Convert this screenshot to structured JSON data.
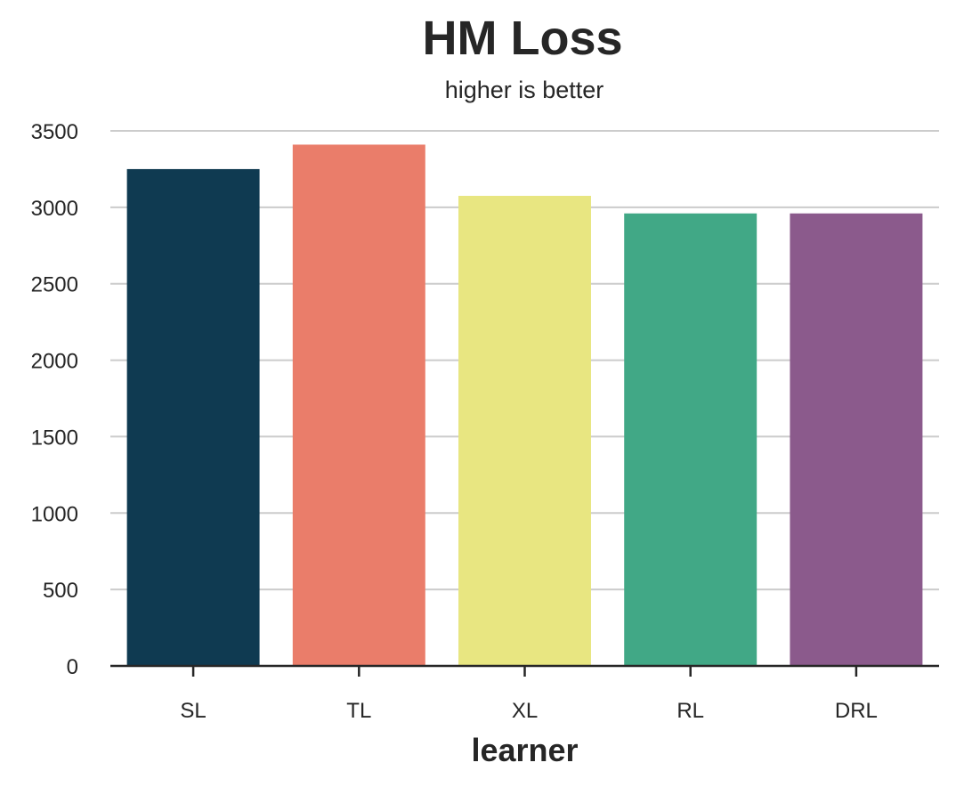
{
  "chart_data": {
    "type": "bar",
    "title": "HM Loss",
    "subtitle": "higher is better",
    "xlabel": "learner",
    "ylabel": "",
    "categories": [
      "SL",
      "TL",
      "XL",
      "RL",
      "DRL"
    ],
    "values": [
      3250,
      3410,
      3075,
      2960,
      2960
    ],
    "colors": [
      "#0f3a51",
      "#ea7d6a",
      "#e8e681",
      "#41a886",
      "#8b5a8c"
    ],
    "ylim": [
      0,
      3500
    ],
    "yticks": [
      0,
      500,
      1000,
      1500,
      2000,
      2500,
      3000,
      3500
    ],
    "grid": "horizontal",
    "legend": "none"
  }
}
